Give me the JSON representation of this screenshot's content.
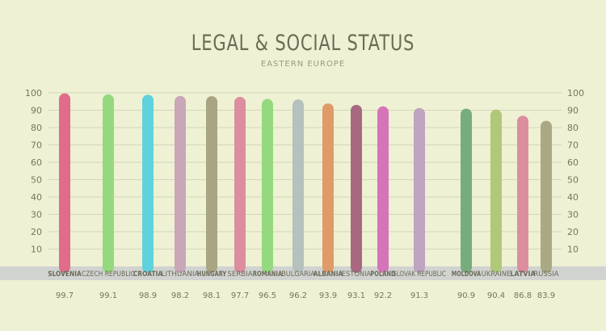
{
  "chart_data": {
    "type": "bar",
    "title": "LEGAL & SOCIAL STATUS",
    "subtitle": "EASTERN EUROPE",
    "categories": [
      "SLOVENIA",
      "CZECH REPUBLIC",
      "CROATIA",
      "LITHUANIA",
      "HUNGARY",
      "SERBIA",
      "ROMANIA",
      "BULGARIA",
      "ALBANIA",
      "ESTONIA",
      "POLAND",
      "SLOVAK REPUBLIC",
      "MOLDOVA",
      "UKRAINE",
      "LATVIA",
      "RUSSIA"
    ],
    "values": [
      99.7,
      99.1,
      98.9,
      98.2,
      98.1,
      97.7,
      96.5,
      96.2,
      93.9,
      93.1,
      92.2,
      91.3,
      90.9,
      90.4,
      86.8,
      83.9
    ],
    "value_labels": [
      "99.7",
      "99.1",
      "98.9",
      "98.2",
      "98.1",
      "97.7",
      "96.5",
      "96.2",
      "93.9",
      "93.1",
      "92.2",
      "91.3",
      "90.9",
      "90.4",
      "86.8",
      "83.9"
    ],
    "colors": [
      "#e06c8a",
      "#95d97e",
      "#5fd2de",
      "#c9a6b8",
      "#a9a582",
      "#dc8e9e",
      "#95d97e",
      "#b6c0bd",
      "#df9a68",
      "#a86880",
      "#d574b8",
      "#bea4c0",
      "#78ac7e",
      "#b0c87a",
      "#dc8e9e",
      "#aaa984"
    ],
    "bold_labels": [
      true,
      false,
      true,
      false,
      true,
      false,
      true,
      false,
      true,
      false,
      true,
      false,
      true,
      false,
      true,
      false
    ],
    "ylim": [
      0,
      100
    ],
    "yticks": [
      "10",
      "20",
      "30",
      "40",
      "50",
      "60",
      "70",
      "80",
      "90",
      "100"
    ],
    "grid": true,
    "xlabel": "",
    "ylabel": ""
  }
}
